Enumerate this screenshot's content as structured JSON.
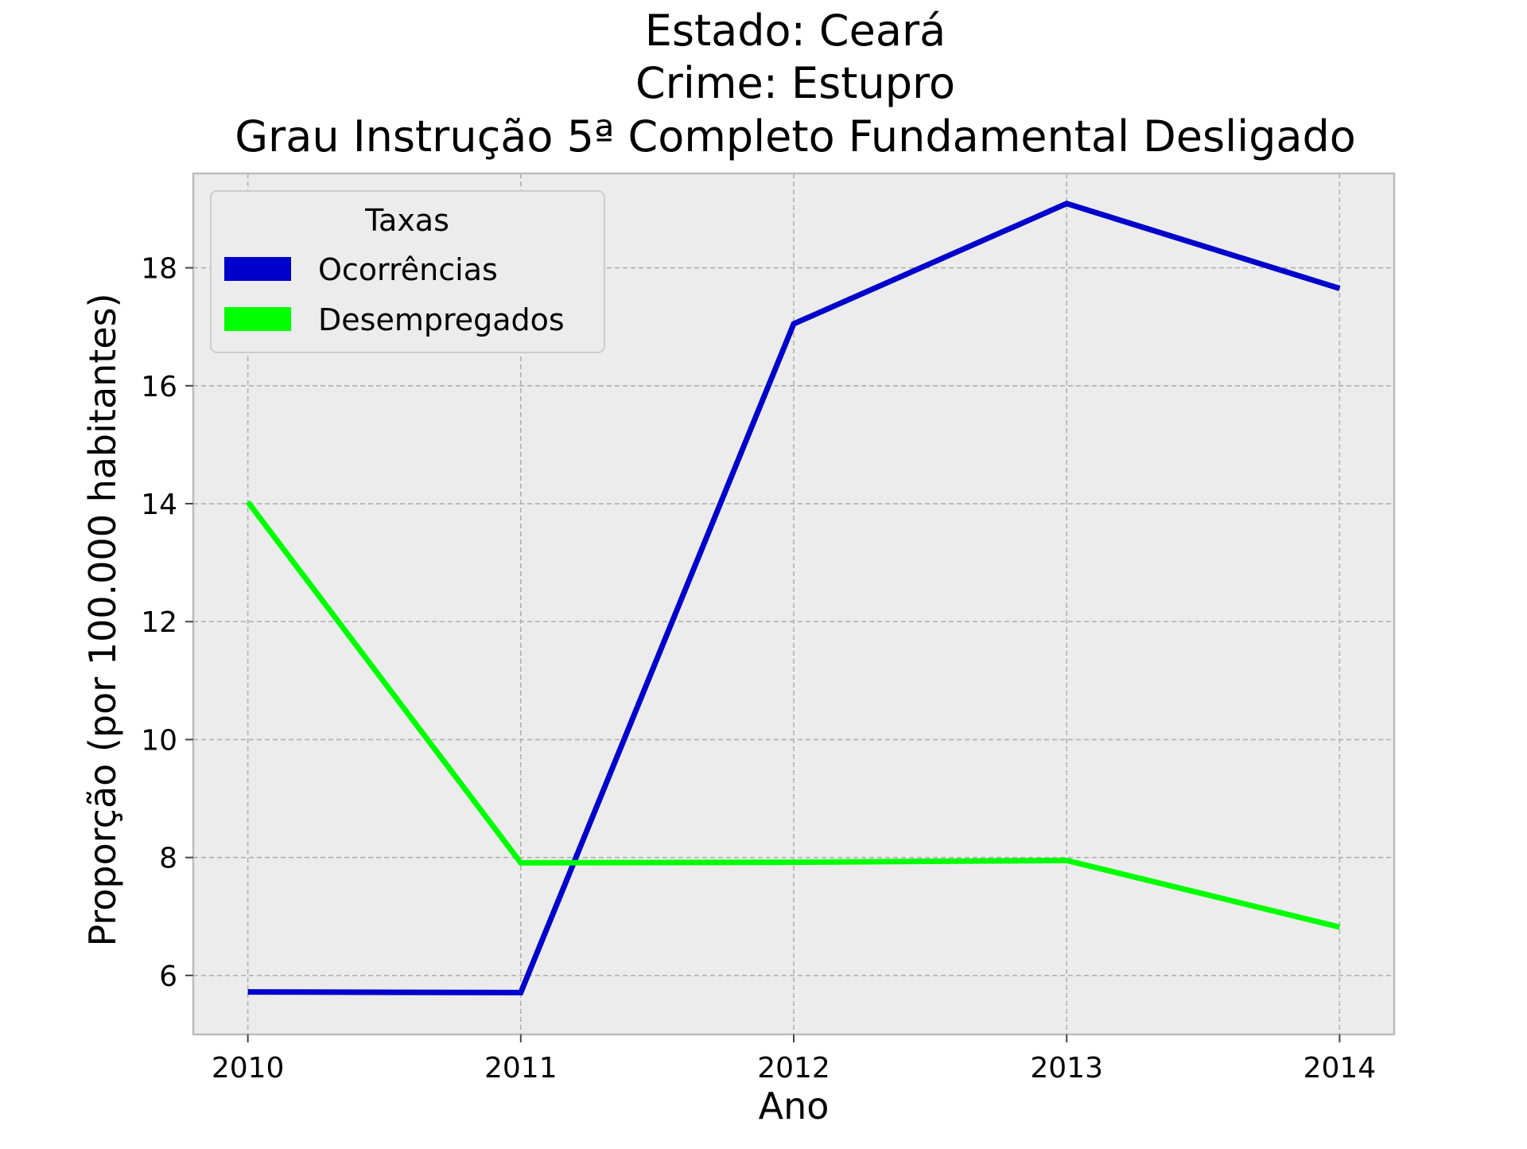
{
  "chart_data": {
    "type": "line",
    "title_lines": [
      "Estado: Ceará",
      "Crime: Estupro",
      "Grau Instrução  5ª Completo Fundamental   Desligado"
    ],
    "xlabel": "Ano",
    "ylabel": "Proporção (por 100.000 habitantes)",
    "x": [
      2010,
      2011,
      2012,
      2013,
      2014
    ],
    "x_tick_labels": [
      "2010",
      "2011",
      "2012",
      "2013",
      "2014"
    ],
    "y_ticks": [
      6,
      8,
      10,
      12,
      14,
      16,
      18
    ],
    "y_tick_labels": [
      "6",
      "8",
      "10",
      "12",
      "14",
      "16",
      "18"
    ],
    "xlim": [
      2009.8,
      2014.2
    ],
    "ylim": [
      5.0,
      19.6
    ],
    "grid": true,
    "background": "#ececec",
    "legend": {
      "title": "Taxas",
      "position": "upper left"
    },
    "series": [
      {
        "name": "Ocorrências",
        "color": "#0000cc",
        "values": [
          5.72,
          5.71,
          17.05,
          19.09,
          17.65
        ]
      },
      {
        "name": "Desempregados",
        "color": "#00ff00",
        "values": [
          14.03,
          7.91,
          7.92,
          7.95,
          6.82
        ]
      }
    ]
  }
}
